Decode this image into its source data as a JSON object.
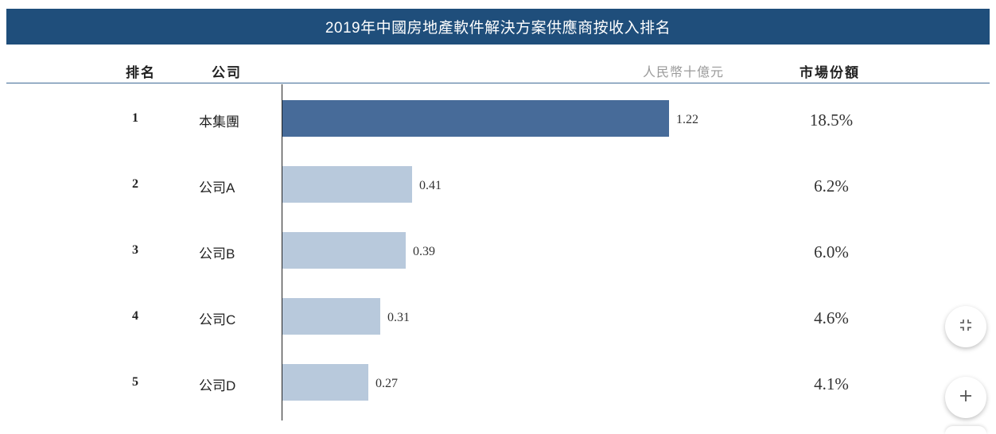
{
  "header": {
    "title": "2019年中國房地產軟件解決方案供應商按收入排名",
    "col_rank": "排名",
    "col_company": "公司",
    "col_unit": "人民幣十億元",
    "col_share": "市場份額"
  },
  "chart_data": {
    "type": "bar",
    "orientation": "horizontal",
    "title": "2019年中國房地產軟件解決方案供應商按收入排名",
    "unit": "人民幣十億元",
    "ranks": [
      "1",
      "2",
      "3",
      "4",
      "5"
    ],
    "categories": [
      "本集團",
      "公司A",
      "公司B",
      "公司C",
      "公司D"
    ],
    "values": [
      1.22,
      0.41,
      0.39,
      0.31,
      0.27
    ],
    "value_labels": [
      "1.22",
      "0.41",
      "0.39",
      "0.31",
      "0.27"
    ],
    "market_share": [
      "18.5%",
      "6.2%",
      "6.0%",
      "4.6%",
      "4.1%"
    ],
    "colors": {
      "highlight": "#476b99",
      "other": "#b8c9dc"
    }
  },
  "controls": {
    "collapse_icon": "collapse-icon",
    "zoom_in_icon": "plus-icon"
  }
}
